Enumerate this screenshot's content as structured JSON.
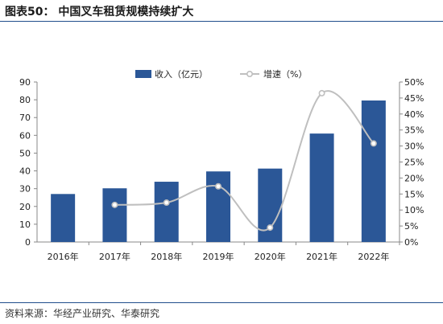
{
  "title": "图表50：  中国叉车租赁规模持续扩大",
  "source": "资料来源：华经产业研究、华泰研究",
  "colors": {
    "bar": "#2b5797",
    "line": "#bfbfbf",
    "rule": "#1f4e8c"
  },
  "chart_data": {
    "type": "bar",
    "categories": [
      "2016年",
      "2017年",
      "2018年",
      "2019年",
      "2020年",
      "2021年",
      "2022年"
    ],
    "series": [
      {
        "name": "收入（亿元）",
        "type": "bar",
        "axis": "left",
        "values": [
          27,
          30.2,
          33.9,
          39.7,
          41.3,
          61,
          79.6
        ]
      },
      {
        "name": "增速（%）",
        "type": "line",
        "axis": "right",
        "smooth": true,
        "values": [
          null,
          11.6,
          12.3,
          17.4,
          4.5,
          46.5,
          30.8
        ]
      }
    ],
    "ylim": [
      0,
      90
    ],
    "y_ticks": [
      "0",
      "10",
      "20",
      "30",
      "40",
      "50",
      "60",
      "70",
      "80",
      "90"
    ],
    "y2lim": [
      0,
      50
    ],
    "y2_ticks": [
      "0%",
      "5%",
      "10%",
      "15%",
      "20%",
      "25%",
      "30%",
      "35%",
      "40%",
      "45%",
      "50%"
    ],
    "legend": "top-center",
    "grid": false
  }
}
